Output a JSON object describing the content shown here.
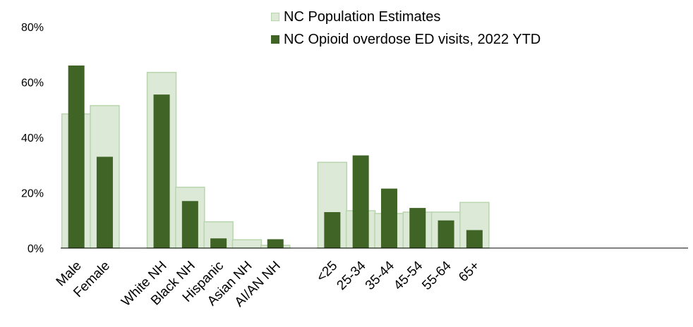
{
  "chart_data": {
    "type": "bar",
    "categories": [
      "Male",
      "Female",
      "",
      "White NH",
      "Black NH",
      "Hispanic",
      "Asian NH",
      "AI/AN NH",
      "",
      "<25",
      "25-34",
      "35-44",
      "45-54",
      "55-64",
      "65+"
    ],
    "series": [
      {
        "name": "NC Population Estimates",
        "color": "#dbe9d6",
        "stroke": "#b9d5ae",
        "values": [
          48.5,
          51.5,
          null,
          63.5,
          22,
          9.5,
          3,
          1,
          null,
          31,
          13.5,
          12.5,
          13,
          13,
          16.5
        ]
      },
      {
        "name": "NC Opioid overdose ED visits, 2022 YTD",
        "color": "#3f6425",
        "values": [
          66,
          33,
          null,
          55.5,
          17,
          3.5,
          0,
          3.2,
          null,
          13,
          33.5,
          21.5,
          14.5,
          10,
          6.5
        ]
      }
    ],
    "yticks": [
      "0%",
      "20%",
      "40%",
      "60%",
      "80%"
    ],
    "ylim": [
      0,
      80
    ],
    "grid": false,
    "legend_position": "top"
  }
}
